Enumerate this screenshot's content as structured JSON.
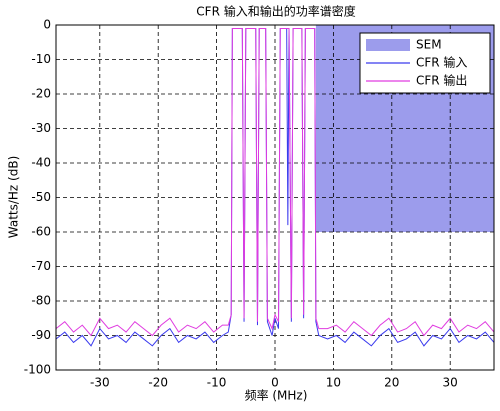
{
  "chart_data": {
    "type": "line",
    "title": "CFR 输入和输出的功率谱密度",
    "x_label": "频率 (MHz)",
    "y_label": "Watts/Hz (dB)",
    "xlim": [
      -37.5,
      37.5
    ],
    "ylim": [
      -100,
      0
    ],
    "xticks": [
      -30,
      -20,
      -10,
      0,
      10,
      20,
      30
    ],
    "yticks": [
      0,
      -10,
      -20,
      -30,
      -40,
      -50,
      -60,
      -70,
      -80,
      -90,
      -100
    ],
    "grid": true,
    "legend": "upper right",
    "x": [
      -37.5,
      -36,
      -34.5,
      -33,
      -31.5,
      -30,
      -28.5,
      -27,
      -25.5,
      -24,
      -22.5,
      -21,
      -19.5,
      -18,
      -16.5,
      -15,
      -13.5,
      -12,
      -10.5,
      -9,
      -8,
      -7.5,
      -7.3,
      -5.6,
      -5.3,
      -5.0,
      -3.3,
      -3.0,
      -2.7,
      -1.6,
      -1.3,
      -0.5,
      0,
      0.6,
      0.9,
      1.8,
      2.0,
      2.2,
      2.4,
      2.8,
      3.1,
      4.6,
      4.9,
      5.2,
      6.8,
      7.0,
      7.5,
      9,
      10.5,
      12,
      13.5,
      15,
      16.5,
      18,
      19.5,
      21,
      22.5,
      24,
      25.5,
      27,
      28.5,
      30,
      31.5,
      33,
      34.5,
      36,
      37.5
    ],
    "series": [
      {
        "name": "SEM",
        "type": "area",
        "color": "#9c9cec",
        "x": [
          7,
          7,
          37.5,
          37.5
        ],
        "values": [
          0,
          -60,
          -60,
          0
        ]
      },
      {
        "name": "CFR 输入",
        "type": "line",
        "color": "#3a3aee",
        "values": [
          -91,
          -89,
          -92,
          -90,
          -93,
          -88,
          -91,
          -90,
          -92,
          -89,
          -91,
          -93,
          -90,
          -88,
          -92,
          -90,
          -91,
          -89,
          -92,
          -90,
          -89,
          -84,
          -1,
          -1,
          -86,
          -1,
          -1,
          -87,
          -1,
          -1,
          -86,
          -90,
          -85,
          -88,
          -1,
          -1,
          -1,
          -58,
          -1,
          -86,
          -1,
          -1,
          -85,
          -1,
          -1,
          -86,
          -90,
          -91,
          -90,
          -92,
          -89,
          -91,
          -93,
          -90,
          -88,
          -92,
          -91,
          -89,
          -93,
          -90,
          -91,
          -88,
          -92,
          -90,
          -91,
          -89,
          -92
        ]
      },
      {
        "name": "CFR 输出",
        "type": "line",
        "color": "#e03ce0",
        "values": [
          -88,
          -86,
          -89,
          -87,
          -90,
          -85,
          -88,
          -87,
          -89,
          -86,
          -88,
          -90,
          -87,
          -85,
          -89,
          -87,
          -88,
          -86,
          -89,
          -87,
          -87,
          -84,
          -1,
          -1,
          -85,
          -1,
          -1,
          -86,
          -1,
          -1,
          -85,
          -88,
          -84,
          -86,
          -1,
          -1,
          -1,
          -1,
          -1,
          -85,
          -1,
          -1,
          -84,
          -1,
          -1,
          -85,
          -88,
          -88,
          -87,
          -89,
          -86,
          -88,
          -90,
          -87,
          -85,
          -89,
          -88,
          -86,
          -90,
          -87,
          -88,
          -85,
          -89,
          -87,
          -88,
          -86,
          -89
        ]
      }
    ]
  }
}
